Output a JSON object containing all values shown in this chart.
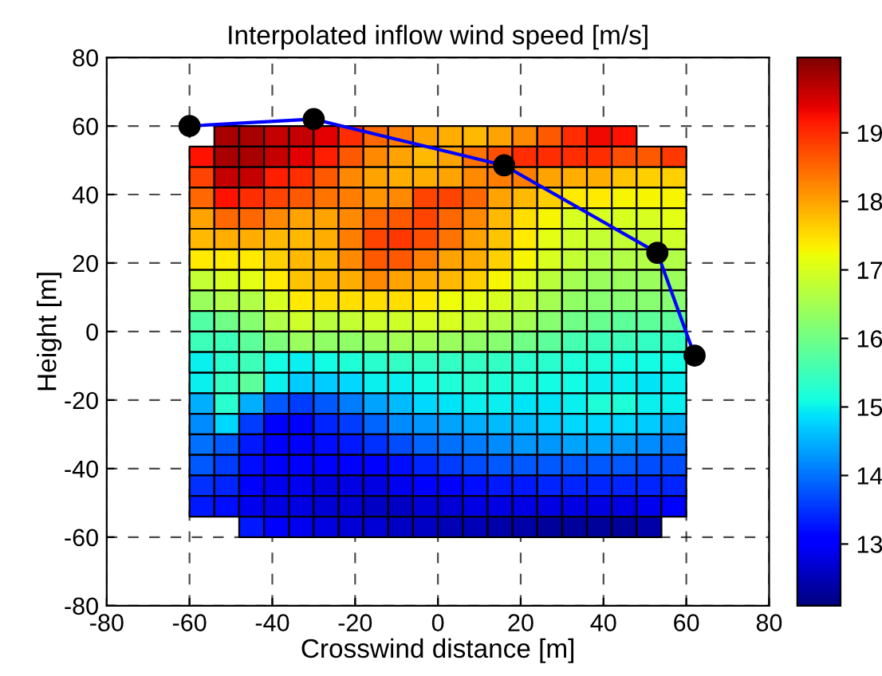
{
  "chart_data": {
    "type": "heatmap",
    "title": "Interpolated inflow wind speed [m/s]",
    "xlabel": "Crosswind distance [m]",
    "ylabel": "Height [m]",
    "x": [
      -57,
      -51,
      -45,
      -39,
      -33,
      -27,
      -21,
      -15,
      -9,
      -3,
      3,
      9,
      15,
      21,
      27,
      33,
      39,
      45,
      51,
      57
    ],
    "y": [
      57,
      51,
      45,
      39,
      33,
      27,
      21,
      15,
      9,
      3,
      -3,
      -9,
      -15,
      -21,
      -27,
      -33,
      -39,
      -45,
      -51,
      -57
    ],
    "cells": [
      [
        null,
        19.8,
        19.8,
        19.6,
        19.6,
        19.4,
        19.0,
        18.5,
        18.3,
        18.0,
        17.9,
        17.8,
        18.0,
        18.2,
        18.6,
        19.0,
        19.3,
        19.2,
        null,
        null
      ],
      [
        19.2,
        19.8,
        19.8,
        19.6,
        19.4,
        19.1,
        18.6,
        18.2,
        18.0,
        17.8,
        18.0,
        18.4,
        18.7,
        19.0,
        19.0,
        19.0,
        19.0,
        18.7,
        18.6,
        18.9
      ],
      [
        18.8,
        19.6,
        19.6,
        19.1,
        19.0,
        18.6,
        18.2,
        18.0,
        17.9,
        17.9,
        18.0,
        18.2,
        18.3,
        18.3,
        18.0,
        17.9,
        17.9,
        17.7,
        17.6,
        17.6
      ],
      [
        18.5,
        19.2,
        19.0,
        18.8,
        18.6,
        18.4,
        18.3,
        18.1,
        18.2,
        18.8,
        18.8,
        18.5,
        18.0,
        17.8,
        17.6,
        17.4,
        17.4,
        17.3,
        17.3,
        17.3
      ],
      [
        18.0,
        18.5,
        18.5,
        18.2,
        18.0,
        18.0,
        18.2,
        18.5,
        18.6,
        18.8,
        18.5,
        18.2,
        17.8,
        17.5,
        17.3,
        17.0,
        17.0,
        17.0,
        17.0,
        17.1
      ],
      [
        17.8,
        17.9,
        17.9,
        17.8,
        17.8,
        17.9,
        18.3,
        18.8,
        18.9,
        18.7,
        18.4,
        18.0,
        17.7,
        17.4,
        17.1,
        16.9,
        16.8,
        16.8,
        16.8,
        16.9
      ],
      [
        17.4,
        17.4,
        17.4,
        17.6,
        17.8,
        17.8,
        18.2,
        18.6,
        18.6,
        18.3,
        18.0,
        17.9,
        17.6,
        17.3,
        17.0,
        16.8,
        16.6,
        16.6,
        16.6,
        16.6
      ],
      [
        16.8,
        17.0,
        17.1,
        17.4,
        17.7,
        17.8,
        17.9,
        18.2,
        18.0,
        17.9,
        17.8,
        17.6,
        17.3,
        17.0,
        16.7,
        16.5,
        16.4,
        16.4,
        16.4,
        16.4
      ],
      [
        16.4,
        16.6,
        16.6,
        17.0,
        17.4,
        17.5,
        17.5,
        17.5,
        17.5,
        17.4,
        17.2,
        17.1,
        17.0,
        16.8,
        16.5,
        16.3,
        16.2,
        16.2,
        16.2,
        16.2
      ],
      [
        15.7,
        16.0,
        16.2,
        16.6,
        16.9,
        16.7,
        16.8,
        16.9,
        16.9,
        17.0,
        17.0,
        16.8,
        16.6,
        16.5,
        16.2,
        16.0,
        15.9,
        15.8,
        15.8,
        15.8
      ],
      [
        15.5,
        15.5,
        15.8,
        16.1,
        16.4,
        16.3,
        16.3,
        16.4,
        16.5,
        16.5,
        16.4,
        16.3,
        16.2,
        16.0,
        15.8,
        15.6,
        15.5,
        15.5,
        15.4,
        15.4
      ],
      [
        15.0,
        15.3,
        15.5,
        15.1,
        15.0,
        15.1,
        15.2,
        15.3,
        15.4,
        15.4,
        15.4,
        15.4,
        15.4,
        15.3,
        15.3,
        15.2,
        15.2,
        15.1,
        15.1,
        15.1
      ],
      [
        15.0,
        15.4,
        15.8,
        15.0,
        14.7,
        14.7,
        14.8,
        15.0,
        15.0,
        15.1,
        15.2,
        15.3,
        15.2,
        15.2,
        15.1,
        15.1,
        15.0,
        15.0,
        14.9,
        15.0
      ],
      [
        14.5,
        15.3,
        14.5,
        13.8,
        13.6,
        13.8,
        14.1,
        14.4,
        14.6,
        14.8,
        14.9,
        15.0,
        15.0,
        14.9,
        14.9,
        15.0,
        15.2,
        15.2,
        15.0,
        15.0
      ],
      [
        14.2,
        14.8,
        13.6,
        13.1,
        13.1,
        13.4,
        13.6,
        13.9,
        14.2,
        14.3,
        14.4,
        14.5,
        14.6,
        14.6,
        14.7,
        14.8,
        14.8,
        14.8,
        14.7,
        14.5
      ],
      [
        14.0,
        13.8,
        13.3,
        13.0,
        13.0,
        13.2,
        13.3,
        13.5,
        13.7,
        13.9,
        14.0,
        14.1,
        14.2,
        14.3,
        14.3,
        14.4,
        14.4,
        14.3,
        14.2,
        14.1
      ],
      [
        13.8,
        13.6,
        13.2,
        13.0,
        13.0,
        13.0,
        13.0,
        13.0,
        13.2,
        13.4,
        13.6,
        13.7,
        13.8,
        13.8,
        13.8,
        13.8,
        13.8,
        13.8,
        13.7,
        13.7
      ],
      [
        13.5,
        13.4,
        13.0,
        12.9,
        12.9,
        12.8,
        12.8,
        12.8,
        12.9,
        13.0,
        13.1,
        13.2,
        13.3,
        13.3,
        13.4,
        13.4,
        13.4,
        13.4,
        13.4,
        13.4
      ],
      [
        13.3,
        13.2,
        12.9,
        12.8,
        12.8,
        12.7,
        12.7,
        12.6,
        12.6,
        12.7,
        12.7,
        12.8,
        12.8,
        12.8,
        12.8,
        12.8,
        12.8,
        12.8,
        12.9,
        13.0
      ],
      [
        null,
        null,
        13.3,
        13.1,
        12.9,
        12.8,
        12.7,
        12.7,
        12.6,
        12.6,
        12.5,
        12.5,
        12.4,
        12.4,
        12.3,
        12.3,
        12.3,
        12.3,
        12.4,
        null
      ]
    ],
    "series": [
      {
        "type": "line",
        "color": "#0000ff",
        "marker": "circle",
        "x": [
          -60,
          -30,
          16,
          53,
          62
        ],
        "values": [
          60,
          62,
          48.5,
          23,
          -7
        ]
      }
    ],
    "clim": [
      12.1,
      20.1
    ],
    "cticks": [
      13,
      14,
      15,
      16,
      17,
      18,
      19
    ],
    "xlim": [
      -80,
      80
    ],
    "xticks": [
      -80,
      -60,
      -40,
      -20,
      0,
      20,
      40,
      60,
      80
    ],
    "ylim": [
      -80,
      80
    ],
    "yticks": [
      -80,
      -60,
      -40,
      -20,
      0,
      20,
      40,
      60,
      80
    ],
    "grid": true
  }
}
